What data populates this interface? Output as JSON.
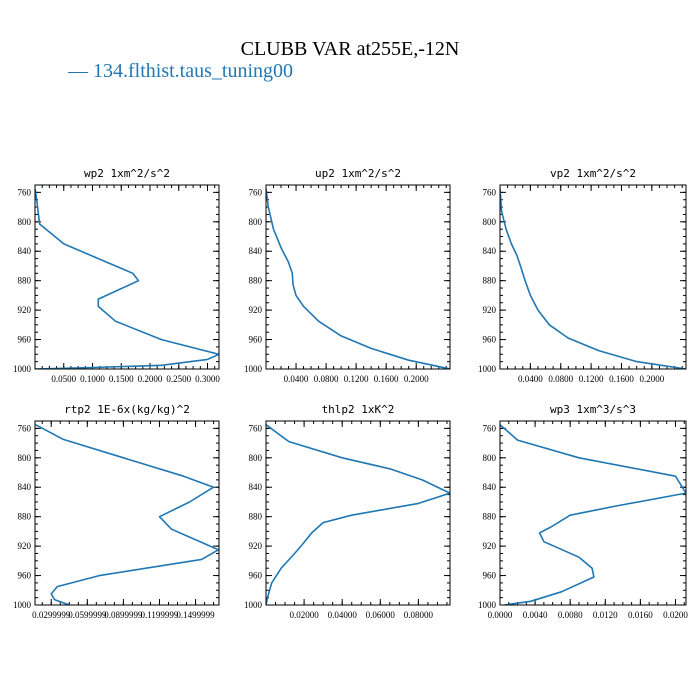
{
  "figure": {
    "title": "CLUBB VAR at255E,-12N",
    "legend": [
      {
        "label": "— 134.flthist.taus_tuning00",
        "color": "#1f77b4"
      }
    ]
  },
  "chart_data": [
    {
      "type": "line",
      "title": "wp2  1xm^2/s^2",
      "xlim": [
        0,
        0.32
      ],
      "ylim": [
        1000,
        750
      ],
      "xticks": [
        "0.0500",
        "0.1000",
        "0.1500",
        "0.2000",
        "0.2500",
        "0.3000"
      ],
      "xtick_values": [
        0.05,
        0.1,
        0.15,
        0.2,
        0.25,
        0.3
      ],
      "yticks": [
        "760",
        "800",
        "840",
        "880",
        "920",
        "960",
        "1000"
      ],
      "ytick_values": [
        760,
        800,
        840,
        880,
        920,
        960,
        1000
      ],
      "series": [
        {
          "x": [
            0.0,
            0.003,
            0.008,
            0.05,
            0.17,
            0.18,
            0.11,
            0.11,
            0.14,
            0.22,
            0.32,
            0.3,
            0.22,
            0.1,
            0.0
          ],
          "y": [
            755,
            770,
            803,
            830,
            870,
            880,
            905,
            915,
            935,
            960,
            980,
            987,
            995,
            998,
            1000
          ]
        }
      ]
    },
    {
      "type": "line",
      "title": "up2  1xm^2/s^2",
      "xlim": [
        0,
        0.245
      ],
      "ylim": [
        1000,
        750
      ],
      "xticks": [
        "0.0400",
        "0.0800",
        "0.1200",
        "0.1600",
        "0.2000"
      ],
      "xtick_values": [
        0.04,
        0.08,
        0.12,
        0.16,
        0.2
      ],
      "yticks": [
        "760",
        "800",
        "840",
        "880",
        "920",
        "960",
        "1000"
      ],
      "ytick_values": [
        760,
        800,
        840,
        880,
        920,
        960,
        1000
      ],
      "series": [
        {
          "x": [
            0.0,
            0.003,
            0.01,
            0.02,
            0.03,
            0.035,
            0.036,
            0.04,
            0.05,
            0.07,
            0.1,
            0.14,
            0.19,
            0.245
          ],
          "y": [
            755,
            780,
            810,
            835,
            855,
            870,
            885,
            900,
            915,
            935,
            955,
            972,
            988,
            1000
          ]
        }
      ]
    },
    {
      "type": "line",
      "title": "vp2  1xm^2/s^2",
      "xlim": [
        0,
        0.245
      ],
      "ylim": [
        1000,
        750
      ],
      "xticks": [
        "0.0400",
        "0.0800",
        "0.1200",
        "0.1600",
        "0.2000"
      ],
      "xtick_values": [
        0.04,
        0.08,
        0.12,
        0.16,
        0.2
      ],
      "yticks": [
        "760",
        "800",
        "840",
        "880",
        "920",
        "960",
        "1000"
      ],
      "ytick_values": [
        760,
        800,
        840,
        880,
        920,
        960,
        1000
      ],
      "series": [
        {
          "x": [
            0.0,
            0.002,
            0.008,
            0.015,
            0.022,
            0.027,
            0.033,
            0.04,
            0.05,
            0.065,
            0.09,
            0.13,
            0.18,
            0.245
          ],
          "y": [
            755,
            785,
            810,
            830,
            845,
            860,
            880,
            900,
            920,
            940,
            958,
            975,
            990,
            1000
          ]
        }
      ]
    },
    {
      "type": "line",
      "title": "rtp2  1E-6x(kg/kg)^2",
      "xlim": [
        0.0165,
        0.1695
      ],
      "ylim": [
        1000,
        750
      ],
      "xticks": [
        "0.0299999",
        "0.0599999",
        "0.0899999",
        "0.1199999",
        "0.1499999"
      ],
      "xtick_values": [
        0.03,
        0.06,
        0.09,
        0.12,
        0.15
      ],
      "yticks": [
        "760",
        "800",
        "840",
        "880",
        "920",
        "960",
        "1000"
      ],
      "ytick_values": [
        760,
        800,
        840,
        880,
        920,
        960,
        1000
      ],
      "series": [
        {
          "x": [
            0.017,
            0.04,
            0.09,
            0.14,
            0.165,
            0.145,
            0.12,
            0.13,
            0.155,
            0.169,
            0.155,
            0.07,
            0.035,
            0.03,
            0.033,
            0.045
          ],
          "y": [
            755,
            775,
            800,
            825,
            840,
            860,
            880,
            897,
            915,
            925,
            938,
            960,
            975,
            985,
            993,
            1000
          ]
        }
      ]
    },
    {
      "type": "line",
      "title": "thlp2  1xK^2",
      "xlim": [
        0,
        0.0966
      ],
      "ylim": [
        1000,
        750
      ],
      "xticks": [
        "0.02000",
        "0.04000",
        "0.06000",
        "0.08000"
      ],
      "xtick_values": [
        0.02,
        0.04,
        0.06,
        0.08
      ],
      "yticks": [
        "760",
        "800",
        "840",
        "880",
        "920",
        "960",
        "1000"
      ],
      "ytick_values": [
        760,
        800,
        840,
        880,
        920,
        960,
        1000
      ],
      "series": [
        {
          "x": [
            0.0,
            0.012,
            0.04,
            0.065,
            0.082,
            0.0966,
            0.08,
            0.045,
            0.03,
            0.024,
            0.02,
            0.015,
            0.008,
            0.003,
            0.001,
            0.0
          ],
          "y": [
            755,
            778,
            800,
            815,
            830,
            848,
            862,
            878,
            888,
            902,
            915,
            930,
            950,
            970,
            988,
            1000
          ]
        }
      ]
    },
    {
      "type": "line",
      "title": "wp3  1xm^3/s^3",
      "xlim": [
        0,
        0.0212
      ],
      "ylim": [
        1000,
        750
      ],
      "xticks": [
        "0.0000",
        "0.0040",
        "0.0080",
        "0.0120",
        "0.0160",
        "0.0200"
      ],
      "xtick_values": [
        0.0,
        0.004,
        0.008,
        0.012,
        0.016,
        0.02
      ],
      "yticks": [
        "760",
        "800",
        "840",
        "880",
        "920",
        "960",
        "1000"
      ],
      "ytick_values": [
        760,
        800,
        840,
        880,
        920,
        960,
        1000
      ],
      "series": [
        {
          "x": [
            0.0,
            0.002,
            0.009,
            0.02,
            0.0212,
            0.013,
            0.008,
            0.0058,
            0.0045,
            0.005,
            0.009,
            0.0105,
            0.0107,
            0.007,
            0.0035,
            0.0005
          ],
          "y": [
            755,
            776,
            800,
            825,
            848,
            866,
            878,
            894,
            902,
            914,
            935,
            950,
            962,
            982,
            995,
            1000
          ]
        }
      ]
    }
  ]
}
